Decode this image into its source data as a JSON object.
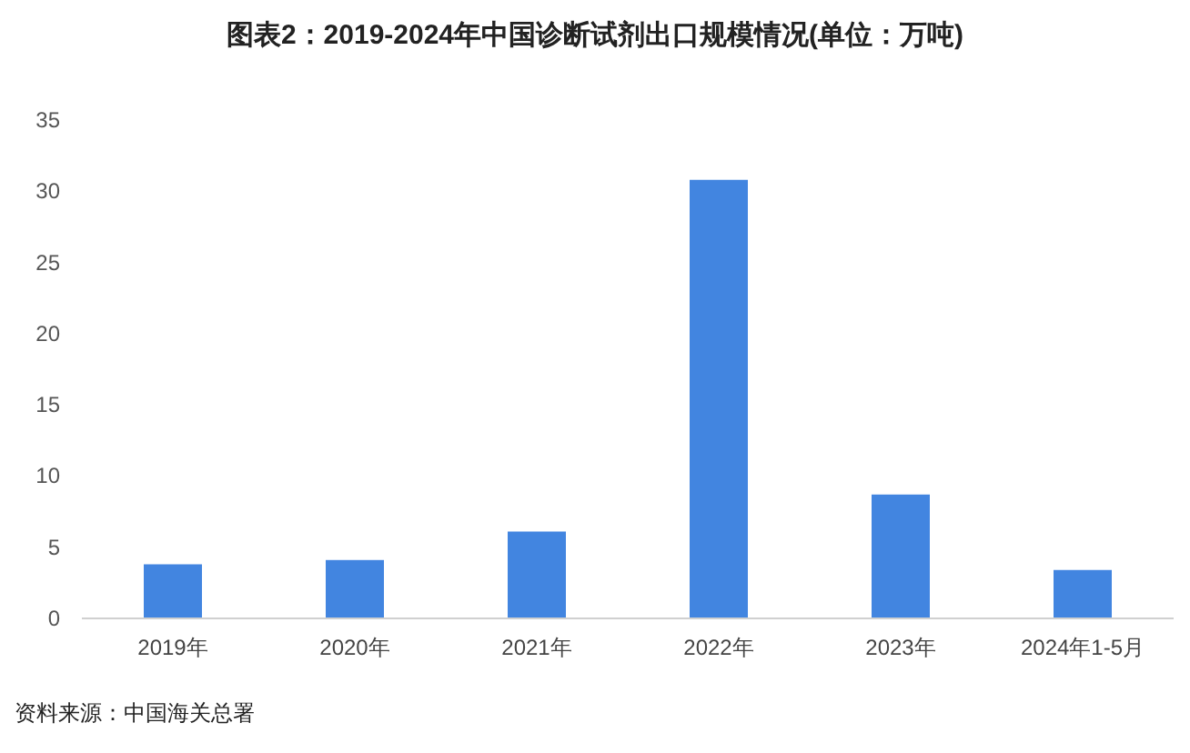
{
  "chart_data": {
    "type": "bar",
    "title": "图表2：2019-2024年中国诊断试剂出口规模情况(单位：万吨)",
    "categories": [
      "2019年",
      "2020年",
      "2021年",
      "2022年",
      "2023年",
      "2024年1-5月"
    ],
    "values": [
      3.8,
      4.1,
      6.1,
      30.8,
      8.7,
      3.4
    ],
    "color": "#4285e0",
    "ylim": [
      0,
      35
    ],
    "yticks": [
      0,
      5,
      10,
      15,
      20,
      25,
      30,
      35
    ],
    "grid": false,
    "annotations": [
      "资料来源：中国海关总署"
    ]
  }
}
